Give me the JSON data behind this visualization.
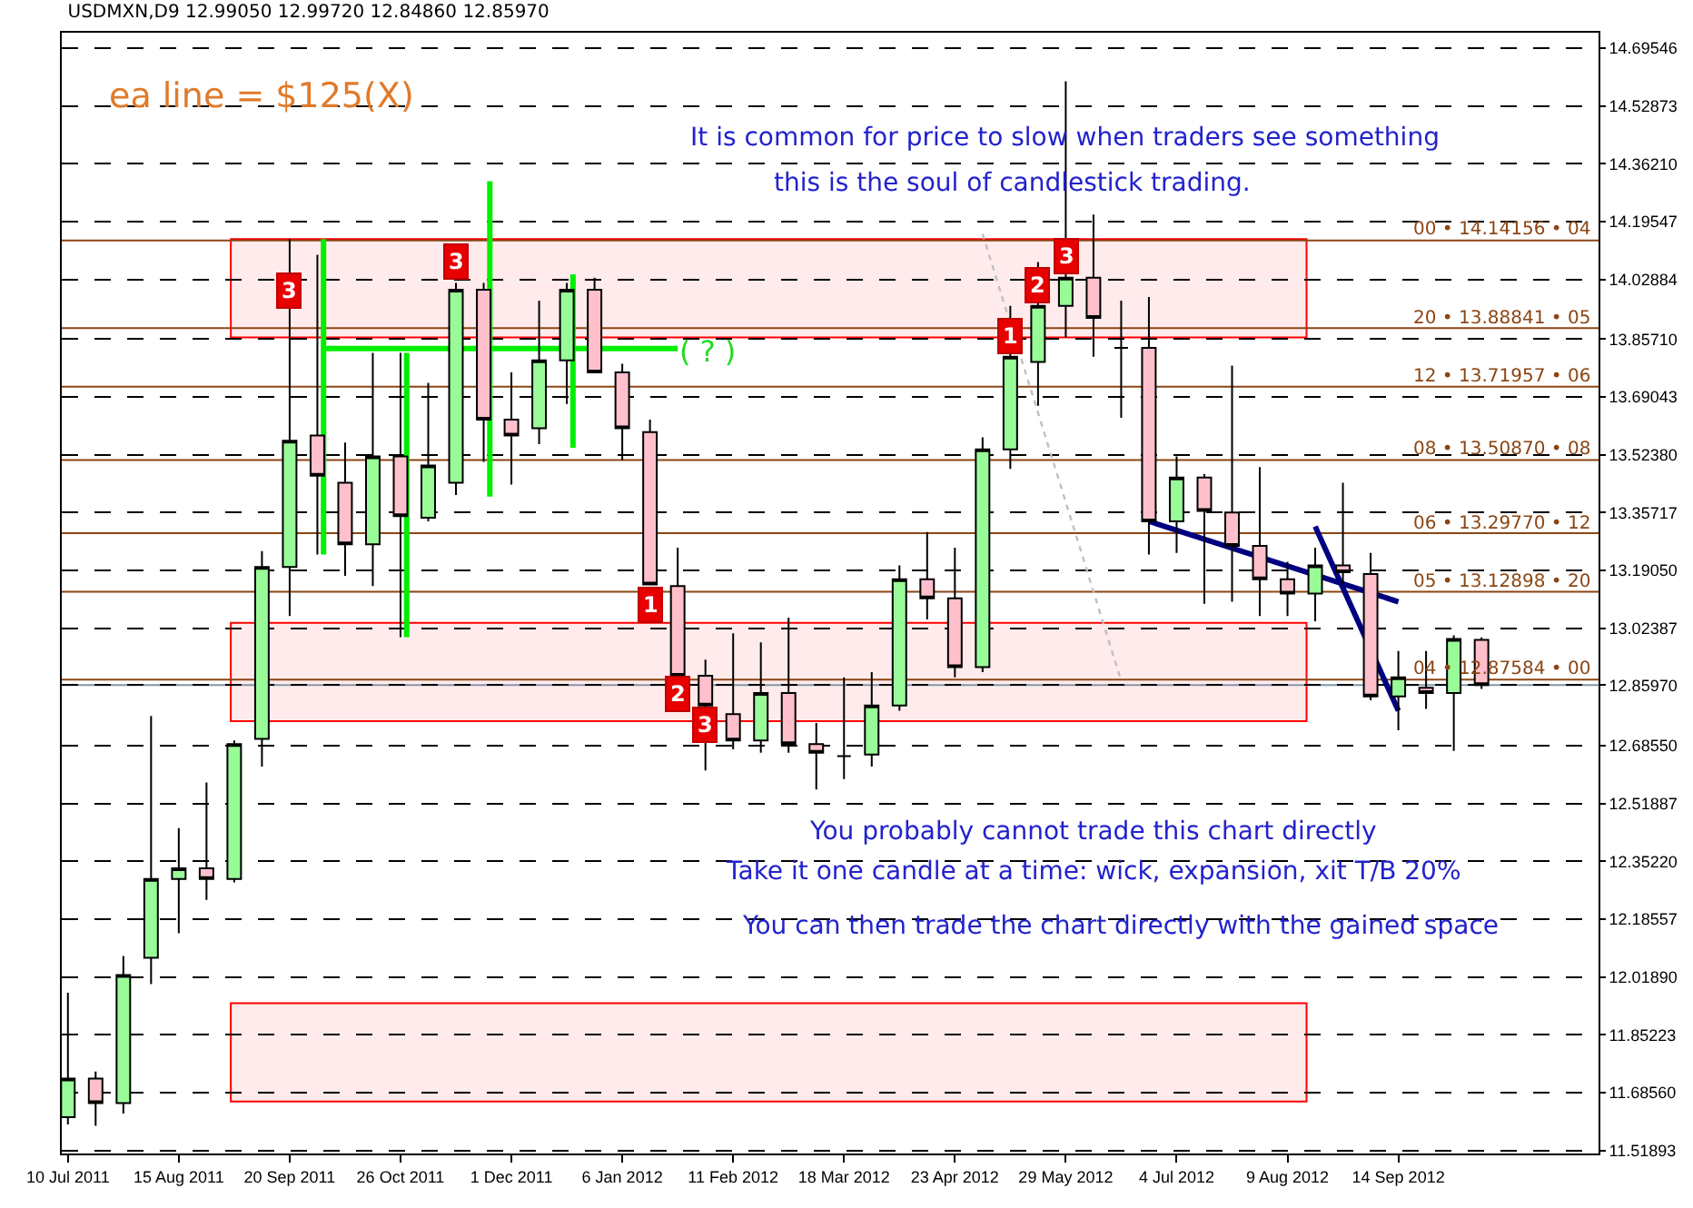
{
  "chart_data": {
    "type": "candlestick",
    "title": "USDMXN,D9 12.99050 12.99720 12.84860 12.85970",
    "x": [
      "2011-07-10",
      "2011-07-19",
      "2011-07-28",
      "2011-08-06",
      "2011-08-15",
      "2011-08-24",
      "2011-09-02",
      "2011-09-11",
      "2011-09-20",
      "2011-09-29",
      "2011-10-08",
      "2011-10-17",
      "2011-10-26",
      "2011-11-04",
      "2011-11-13",
      "2011-11-22",
      "2011-12-01",
      "2011-12-10",
      "2011-12-19",
      "2011-12-28",
      "2012-01-06",
      "2012-01-15",
      "2012-01-24",
      "2012-02-02",
      "2012-02-11",
      "2012-02-20",
      "2012-02-29",
      "2012-03-09",
      "2012-03-18",
      "2012-03-27",
      "2012-04-05",
      "2012-04-14",
      "2012-04-23",
      "2012-05-02",
      "2012-05-11",
      "2012-05-20",
      "2012-05-29",
      "2012-06-07",
      "2012-06-16",
      "2012-06-25",
      "2012-07-04",
      "2012-07-13",
      "2012-07-22",
      "2012-07-31",
      "2012-08-09",
      "2012-08-18",
      "2012-08-27",
      "2012-09-05",
      "2012-09-14",
      "2012-09-23",
      "2012-10-02",
      "2012-10-11"
    ],
    "ohlc": [
      [
        11.615,
        11.973,
        11.594,
        11.726
      ],
      [
        11.726,
        11.746,
        11.59,
        11.655
      ],
      [
        11.655,
        12.079,
        11.625,
        12.024
      ],
      [
        12.074,
        12.771,
        11.998,
        12.301
      ],
      [
        12.301,
        12.448,
        12.145,
        12.332
      ],
      [
        12.332,
        12.579,
        12.241,
        12.301
      ],
      [
        12.301,
        12.7,
        12.291,
        12.69
      ],
      [
        12.705,
        13.246,
        12.625,
        13.2
      ],
      [
        13.2,
        14.145,
        13.059,
        13.564
      ],
      [
        13.579,
        14.1,
        13.236,
        13.463
      ],
      [
        13.443,
        13.559,
        13.175,
        13.266
      ],
      [
        13.266,
        13.817,
        13.145,
        13.519
      ],
      [
        13.519,
        13.817,
        12.998,
        13.347
      ],
      [
        13.342,
        13.731,
        13.332,
        13.493
      ],
      [
        13.443,
        14.019,
        13.408,
        13.999
      ],
      [
        13.999,
        14.019,
        13.503,
        13.625
      ],
      [
        13.625,
        13.761,
        13.438,
        13.579
      ],
      [
        13.6,
        13.968,
        13.554,
        13.796
      ],
      [
        13.796,
        14.019,
        13.67,
        13.999
      ],
      [
        13.999,
        14.034,
        13.761,
        13.761
      ],
      [
        13.761,
        13.786,
        13.508,
        13.6
      ],
      [
        13.589,
        13.625,
        13.15,
        13.15
      ],
      [
        13.145,
        13.256,
        12.877,
        12.887
      ],
      [
        12.887,
        12.933,
        12.614,
        12.801
      ],
      [
        12.776,
        13.009,
        12.675,
        12.7
      ],
      [
        12.7,
        12.983,
        12.665,
        12.837
      ],
      [
        12.837,
        13.054,
        12.665,
        12.69
      ],
      [
        12.69,
        12.751,
        12.559,
        12.665
      ],
      [
        12.655,
        12.882,
        12.589,
        12.655
      ],
      [
        12.66,
        12.897,
        12.625,
        12.801
      ],
      [
        12.801,
        13.205,
        12.786,
        13.165
      ],
      [
        13.165,
        13.301,
        13.049,
        13.11
      ],
      [
        13.11,
        13.256,
        12.882,
        12.912
      ],
      [
        12.912,
        13.574,
        12.897,
        13.539
      ],
      [
        13.539,
        13.953,
        13.483,
        13.806
      ],
      [
        13.791,
        14.079,
        13.665,
        13.953
      ],
      [
        13.953,
        14.6,
        13.862,
        14.034
      ],
      [
        14.034,
        14.216,
        13.806,
        13.918
      ],
      [
        13.832,
        13.968,
        13.63,
        13.832
      ],
      [
        13.832,
        13.978,
        13.236,
        13.332
      ],
      [
        13.332,
        13.519,
        13.241,
        13.458
      ],
      [
        13.458,
        13.468,
        13.094,
        13.362
      ],
      [
        13.357,
        13.781,
        13.1,
        13.261
      ],
      [
        13.261,
        13.488,
        13.059,
        13.165
      ],
      [
        13.165,
        13.215,
        13.059,
        13.124
      ],
      [
        13.124,
        13.256,
        13.044,
        13.205
      ],
      [
        13.205,
        13.443,
        13.15,
        13.185
      ],
      [
        13.18,
        13.241,
        12.816,
        12.827
      ],
      [
        12.827,
        12.958,
        12.73,
        12.882
      ],
      [
        12.852,
        12.958,
        12.791,
        12.837
      ],
      [
        12.837,
        13.003,
        12.67,
        12.993
      ],
      [
        12.9905,
        12.9972,
        12.8486,
        12.8597
      ]
    ],
    "series": [
      {
        "type": "line",
        "color": "#00ee00",
        "x": [
          "2011-10-01",
          "2012-01-24"
        ],
        "values": [
          13.83,
          13.83
        ]
      },
      {
        "type": "line",
        "color": "#00ee00",
        "x": [
          "2011-10-01",
          "2011-10-01"
        ],
        "values": [
          14.145,
          13.236
        ]
      },
      {
        "type": "line",
        "color": "#00ee00",
        "x": [
          "2011-10-28",
          "2011-10-28"
        ],
        "values": [
          13.817,
          12.998
        ]
      },
      {
        "type": "line",
        "color": "#00ee00",
        "x": [
          "2011-11-24",
          "2011-11-24"
        ],
        "values": [
          14.312,
          13.403
        ]
      },
      {
        "type": "line",
        "color": "#00ee00",
        "x": [
          "2011-12-21",
          "2011-12-21"
        ],
        "values": [
          14.044,
          13.544
        ]
      },
      {
        "type": "line",
        "color": "#000080",
        "x": [
          "2012-06-25",
          "2012-09-14"
        ],
        "values": [
          13.332,
          13.1
        ]
      },
      {
        "type": "line",
        "color": "#000080",
        "x": [
          "2012-08-18",
          "2012-09-14"
        ],
        "values": [
          13.317,
          12.786
        ]
      },
      {
        "type": "line",
        "color": "#c0c0c0",
        "line_style": "dotted",
        "x": [
          "2012-05-02",
          "2012-06-16"
        ],
        "values": [
          14.16,
          12.872
        ]
      }
    ],
    "xlim": [
      "2011-07-08",
      "2012-11-18"
    ],
    "xticks": [
      {
        "value": "2011-07-10",
        "label": "10 Jul 2011"
      },
      {
        "value": "2011-08-15",
        "label": "15 Aug 2011"
      },
      {
        "value": "2011-09-20",
        "label": "20 Sep 2011"
      },
      {
        "value": "2011-10-26",
        "label": "26 Oct 2011"
      },
      {
        "value": "2011-12-01",
        "label": "1 Dec 2011"
      },
      {
        "value": "2012-01-06",
        "label": "6 Jan 2012"
      },
      {
        "value": "2012-02-11",
        "label": "11 Feb 2012"
      },
      {
        "value": "2012-03-18",
        "label": "18 Mar 2012"
      },
      {
        "value": "2012-04-23",
        "label": "23 Apr 2012"
      },
      {
        "value": "2012-05-29",
        "label": "29 May 2012"
      },
      {
        "value": "2012-07-04",
        "label": "4 Jul 2012"
      },
      {
        "value": "2012-08-09",
        "label": "9 Aug 2012"
      },
      {
        "value": "2012-09-14",
        "label": "14 Sep 2012"
      }
    ],
    "ylim": [
      11.51,
      14.74
    ],
    "yticks": [
      14.69546,
      14.52873,
      {
        "value": 14.3621,
        "label": "14.36210"
      },
      14.19547,
      14.02884,
      {
        "value": 13.8571,
        "label": "13.85710"
      },
      13.69043,
      {
        "value": 13.5238,
        "label": "13.52380"
      },
      13.35717,
      {
        "value": 13.1905,
        "label": "13.19050"
      },
      13.02387,
      {
        "value": 12.8597,
        "label": "12.85970"
      },
      {
        "value": 12.6855,
        "label": "12.68550"
      },
      12.51887,
      {
        "value": 12.3522,
        "label": "12.35220"
      },
      12.18557,
      {
        "value": 12.0189,
        "label": "12.01890"
      },
      11.85223,
      {
        "value": 11.6856,
        "label": "11.68560"
      },
      11.51893
    ],
    "grid": "y",
    "ref_lines": [
      {
        "axis": "y",
        "value": 14.14156,
        "label": "00 • 14.14156 • 04",
        "color": "#8b4513"
      },
      {
        "axis": "y",
        "value": 13.88841,
        "label": "20 • 13.88841 • 05",
        "color": "#8b4513"
      },
      {
        "axis": "y",
        "value": 13.71957,
        "label": "12 • 13.71957 • 06",
        "color": "#8b4513"
      },
      {
        "axis": "y",
        "value": 13.5087,
        "label": "08 • 13.50870 • 08",
        "color": "#8b4513"
      },
      {
        "axis": "y",
        "value": 13.2977,
        "label": "06 • 13.29770 • 12",
        "color": "#8b4513"
      },
      {
        "axis": "y",
        "value": 13.12898,
        "label": "05 • 13.12898 • 20",
        "color": "#8b4513"
      },
      {
        "axis": "y",
        "value": 12.87584,
        "label": "04 • 12.87584 • 00",
        "color": "#8b4513"
      },
      {
        "axis": "y",
        "value": 12.8597,
        "color": "#8096a8"
      }
    ],
    "bands": [
      {
        "axis": "y",
        "from": 13.862,
        "to": 14.145,
        "color": "#ff0000"
      },
      {
        "axis": "y",
        "from": 12.756,
        "to": 13.039,
        "color": "#ff0000"
      },
      {
        "axis": "y",
        "from": 11.66,
        "to": 11.943,
        "color": "#ff0000"
      }
    ],
    "annotations": [
      "ea line = $125(X)",
      "It is common for price to slow when traders see something",
      "this is the soul of candlestick trading.",
      "( ? )",
      "You probably cannot trade this chart directly",
      "Take it one candle at a time: wick, expansion, xit T/B 20%",
      "You can then trade the chart directly with the gained space",
      {
        "text": "3",
        "x": "2011-09-20",
        "y": 13.999
      },
      {
        "text": "3",
        "x": "2011-11-13",
        "y": 14.08
      },
      {
        "text": "1",
        "x": "2012-01-15",
        "y": 13.09
      },
      {
        "text": "2",
        "x": "2012-01-24",
        "y": 12.832
      },
      {
        "text": "3",
        "x": "2012-02-02",
        "y": 12.746
      },
      {
        "text": "1",
        "x": "2012-05-11",
        "y": 13.867
      },
      {
        "text": "2",
        "x": "2012-05-20",
        "y": 14.014
      },
      {
        "text": "3",
        "x": "2012-05-29",
        "y": 14.094
      }
    ]
  }
}
